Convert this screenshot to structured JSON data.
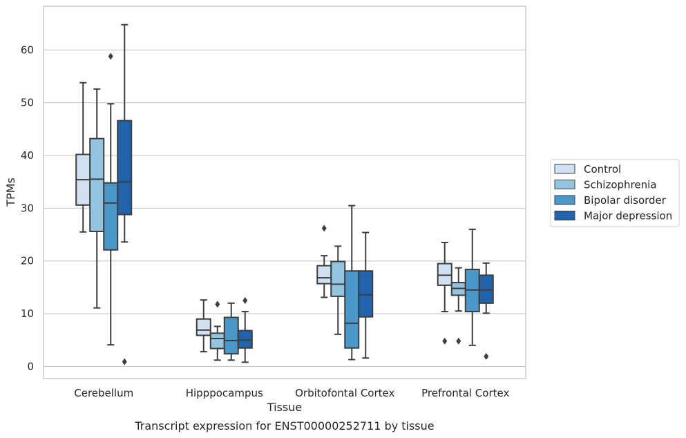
{
  "chart_data": {
    "type": "box",
    "xlabel": "Tissue",
    "ylabel": "TPMs",
    "caption": "Transcript expression for ENST00000252711 by tissue",
    "ylim": [
      -2.3,
      68.3
    ],
    "yticks": [
      0,
      10,
      20,
      30,
      40,
      50,
      60
    ],
    "grid": "horizontal",
    "legend_position": "right",
    "categories": [
      "Cerebellum",
      "Hipppocampus",
      "Orbitofontal Cortex",
      "Prefrontal Cortex"
    ],
    "series": [
      {
        "name": "Control",
        "color": "#d0e1f2",
        "boxes": [
          {
            "whisker_low": 25.5,
            "q1": 30.6,
            "median": 35.4,
            "q3": 40.2,
            "whisker_high": 53.8,
            "outliers": []
          },
          {
            "whisker_low": 2.8,
            "q1": 5.9,
            "median": 6.9,
            "q3": 9.0,
            "whisker_high": 12.6,
            "outliers": []
          },
          {
            "whisker_low": 13.1,
            "q1": 15.7,
            "median": 16.8,
            "q3": 19.1,
            "whisker_high": 21.0,
            "outliers": [
              26.2
            ]
          },
          {
            "whisker_low": 10.4,
            "q1": 15.4,
            "median": 17.3,
            "q3": 19.5,
            "whisker_high": 23.5,
            "outliers": [
              4.8
            ]
          }
        ]
      },
      {
        "name": "Schizophrenia",
        "color": "#94c4df",
        "boxes": [
          {
            "whisker_low": 11.1,
            "q1": 25.6,
            "median": 35.5,
            "q3": 43.2,
            "whisker_high": 52.6,
            "outliers": []
          },
          {
            "whisker_low": 1.2,
            "q1": 3.4,
            "median": 5.3,
            "q3": 6.3,
            "whisker_high": 7.6,
            "outliers": [
              11.8
            ]
          },
          {
            "whisker_low": 6.1,
            "q1": 13.3,
            "median": 15.6,
            "q3": 19.9,
            "whisker_high": 22.8,
            "outliers": []
          },
          {
            "whisker_low": 10.5,
            "q1": 13.5,
            "median": 14.8,
            "q3": 15.9,
            "whisker_high": 18.7,
            "outliers": [
              4.8
            ]
          }
        ]
      },
      {
        "name": "Bipolar disorder",
        "color": "#4a98c9",
        "boxes": [
          {
            "whisker_low": 4.1,
            "q1": 22.1,
            "median": 31.0,
            "q3": 34.8,
            "whisker_high": 49.8,
            "outliers": [
              58.8
            ]
          },
          {
            "whisker_low": 1.2,
            "q1": 2.4,
            "median": 4.9,
            "q3": 9.3,
            "whisker_high": 12.0,
            "outliers": []
          },
          {
            "whisker_low": 1.3,
            "q1": 3.5,
            "median": 8.2,
            "q3": 18.1,
            "whisker_high": 30.5,
            "outliers": []
          },
          {
            "whisker_low": 4.0,
            "q1": 10.4,
            "median": 14.5,
            "q3": 18.4,
            "whisker_high": 26.0,
            "outliers": []
          }
        ]
      },
      {
        "name": "Major depression",
        "color": "#2164ab",
        "boxes": [
          {
            "whisker_low": 23.6,
            "q1": 28.8,
            "median": 35.0,
            "q3": 46.6,
            "whisker_high": 64.8,
            "outliers": [
              0.9
            ]
          },
          {
            "whisker_low": 0.8,
            "q1": 3.5,
            "median": 5.0,
            "q3": 6.8,
            "whisker_high": 10.4,
            "outliers": [
              12.5
            ]
          },
          {
            "whisker_low": 1.6,
            "q1": 9.4,
            "median": 13.6,
            "q3": 18.1,
            "whisker_high": 25.4,
            "outliers": []
          },
          {
            "whisker_low": 10.1,
            "q1": 12.0,
            "median": 14.5,
            "q3": 17.3,
            "whisker_high": 19.6,
            "outliers": [
              1.9
            ]
          }
        ]
      }
    ]
  }
}
